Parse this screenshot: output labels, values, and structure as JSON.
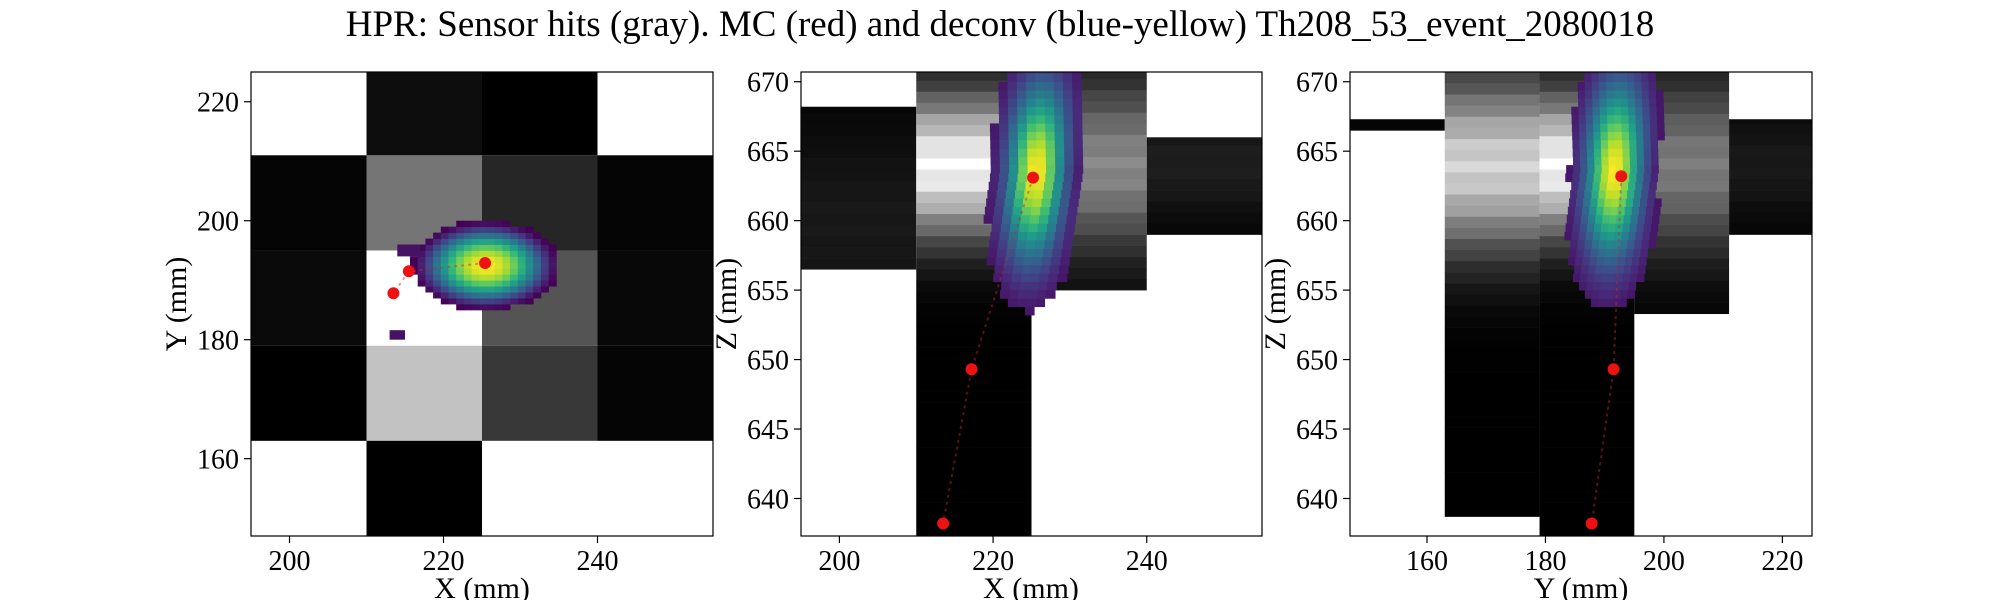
{
  "figure": {
    "title": "HPR: Sensor hits (gray). MC (red) and deconv (blue-yellow) Th208_53_event_2080018"
  },
  "chart_data": [
    {
      "type": "heatmap",
      "panel": "XY",
      "xlabel": "X (mm)",
      "ylabel": "Y (mm)",
      "xlim": [
        195,
        255
      ],
      "ylim": [
        147,
        225
      ],
      "xticks": [
        200,
        220,
        240
      ],
      "yticks": [
        160,
        180,
        200,
        220
      ],
      "grid": false,
      "sensor_hits": [
        {
          "x0": 195,
          "x1": 210,
          "y0": 163,
          "y1": 179,
          "gray": 0
        },
        {
          "x0": 210,
          "x1": 225,
          "y0": 163,
          "y1": 179,
          "gray": 0.76
        },
        {
          "x0": 225,
          "x1": 240,
          "y0": 163,
          "y1": 179,
          "gray": 0.22
        },
        {
          "x0": 240,
          "x1": 255,
          "y0": 163,
          "y1": 179,
          "gray": 0.02
        },
        {
          "x0": 195,
          "x1": 210,
          "y0": 179,
          "y1": 195,
          "gray": 0.04
        },
        {
          "x0": 210,
          "x1": 225,
          "y0": 179,
          "y1": 195,
          "gray": 1.0
        },
        {
          "x0": 225,
          "x1": 240,
          "y0": 179,
          "y1": 195,
          "gray": 0.33
        },
        {
          "x0": 240,
          "x1": 255,
          "y0": 179,
          "y1": 195,
          "gray": 0.03
        },
        {
          "x0": 195,
          "x1": 210,
          "y0": 195,
          "y1": 211,
          "gray": 0.02
        },
        {
          "x0": 210,
          "x1": 225,
          "y0": 195,
          "y1": 211,
          "gray": 0.46
        },
        {
          "x0": 225,
          "x1": 240,
          "y0": 195,
          "y1": 211,
          "gray": 0.15
        },
        {
          "x0": 240,
          "x1": 255,
          "y0": 195,
          "y1": 211,
          "gray": 0.02
        },
        {
          "x0": 210,
          "x1": 225,
          "y0": 211,
          "y1": 225,
          "gray": 0.05
        },
        {
          "x0": 225,
          "x1": 240,
          "y0": 211,
          "y1": 225,
          "gray": 0.0
        },
        {
          "x0": 210,
          "x1": 225,
          "y0": 147,
          "y1": 163,
          "gray": 0.0
        }
      ],
      "deconv_blob": {
        "cx": 225,
        "cy": 192,
        "rx": 9.5,
        "ry": 7.5,
        "peak": 1.0
      },
      "deconv_outliers": [
        {
          "x": 214,
          "y": 194,
          "w": 3,
          "h": 2,
          "v": 0.05
        },
        {
          "x": 213,
          "y": 180,
          "w": 2,
          "h": 1.6,
          "v": 0.05
        }
      ],
      "mc_points": [
        {
          "x": 225.4,
          "y": 192.9
        },
        {
          "x": 215.5,
          "y": 191.5
        },
        {
          "x": 213.5,
          "y": 187.8
        }
      ]
    },
    {
      "type": "heatmap",
      "panel": "XZ",
      "xlabel": "X (mm)",
      "ylabel": "Z (mm)",
      "xlim": [
        195,
        255
      ],
      "ylim": [
        637.3,
        670.7
      ],
      "xticks": [
        200,
        220,
        240
      ],
      "yticks": [
        640,
        645,
        650,
        655,
        660,
        665,
        670
      ],
      "grid": false,
      "column_bounds": [
        195,
        210,
        225,
        240,
        255
      ],
      "z_rows": [
        [
          640,
          640.8
        ],
        [
          650.5,
          651.3
        ],
        [
          656.5,
          666
        ],
        [
          667.4,
          668.2
        ]
      ],
      "profiles": [
        {
          "x0": 195,
          "x1": 210,
          "center": 660,
          "width": 7,
          "max": 0.1,
          "zmin": 656.5,
          "zmax": 668.2
        },
        {
          "x0": 210,
          "x1": 225,
          "center": 664,
          "width": 5,
          "max": 1.0,
          "zmin": 637.3,
          "zmax": 670.7
        },
        {
          "x0": 225,
          "x1": 240,
          "center": 664,
          "width": 6,
          "max": 0.55,
          "zmin": 655,
          "zmax": 670.7
        },
        {
          "x0": 240,
          "x1": 255,
          "center": 664,
          "width": 4,
          "max": 0.12,
          "zmin": 659,
          "zmax": 666
        }
      ],
      "deconv_ridge": {
        "center": [
          225,
          663.2
        ],
        "spread_x": 3.5,
        "z_range": [
          649,
          670.7
        ]
      },
      "mc_points": [
        {
          "x": 225.2,
          "y": 663.1
        },
        {
          "x": 217.2,
          "y": 649.3
        },
        {
          "x": 213.5,
          "y": 638.2
        }
      ]
    },
    {
      "type": "heatmap",
      "panel": "YZ",
      "xlabel": "Y (mm)",
      "ylabel": "Z (mm)",
      "xlim": [
        147,
        225
      ],
      "ylim": [
        637.3,
        670.7
      ],
      "xticks": [
        160,
        180,
        200,
        220
      ],
      "yticks": [
        640,
        645,
        650,
        655,
        660,
        665,
        670
      ],
      "grid": false,
      "column_bounds": [
        147,
        163,
        179,
        195,
        211,
        225
      ],
      "profiles": [
        {
          "x0": 147,
          "x1": 163,
          "center": 667,
          "width": 0.5,
          "max": 0.02,
          "zmin": 666.5,
          "zmax": 667.3
        },
        {
          "x0": 163,
          "x1": 179,
          "center": 664,
          "width": 6,
          "max": 0.85,
          "zmin": 638.7,
          "zmax": 670.7
        },
        {
          "x0": 179,
          "x1": 195,
          "center": 664,
          "width": 5,
          "max": 1.0,
          "zmin": 637.3,
          "zmax": 670.7
        },
        {
          "x0": 195,
          "x1": 211,
          "center": 664,
          "width": 6,
          "max": 0.5,
          "zmin": 653.3,
          "zmax": 670.7
        },
        {
          "x0": 211,
          "x1": 225,
          "center": 664,
          "width": 4,
          "max": 0.1,
          "zmin": 659,
          "zmax": 667.3
        }
      ],
      "deconv_ridge": {
        "center": [
          191,
          663.3
        ],
        "spread_x": 4.5,
        "z_range": [
          649,
          670.7
        ]
      },
      "mc_points": [
        {
          "x": 192.8,
          "y": 663.2
        },
        {
          "x": 191.5,
          "y": 649.3
        },
        {
          "x": 187.8,
          "y": 638.2
        }
      ]
    }
  ]
}
